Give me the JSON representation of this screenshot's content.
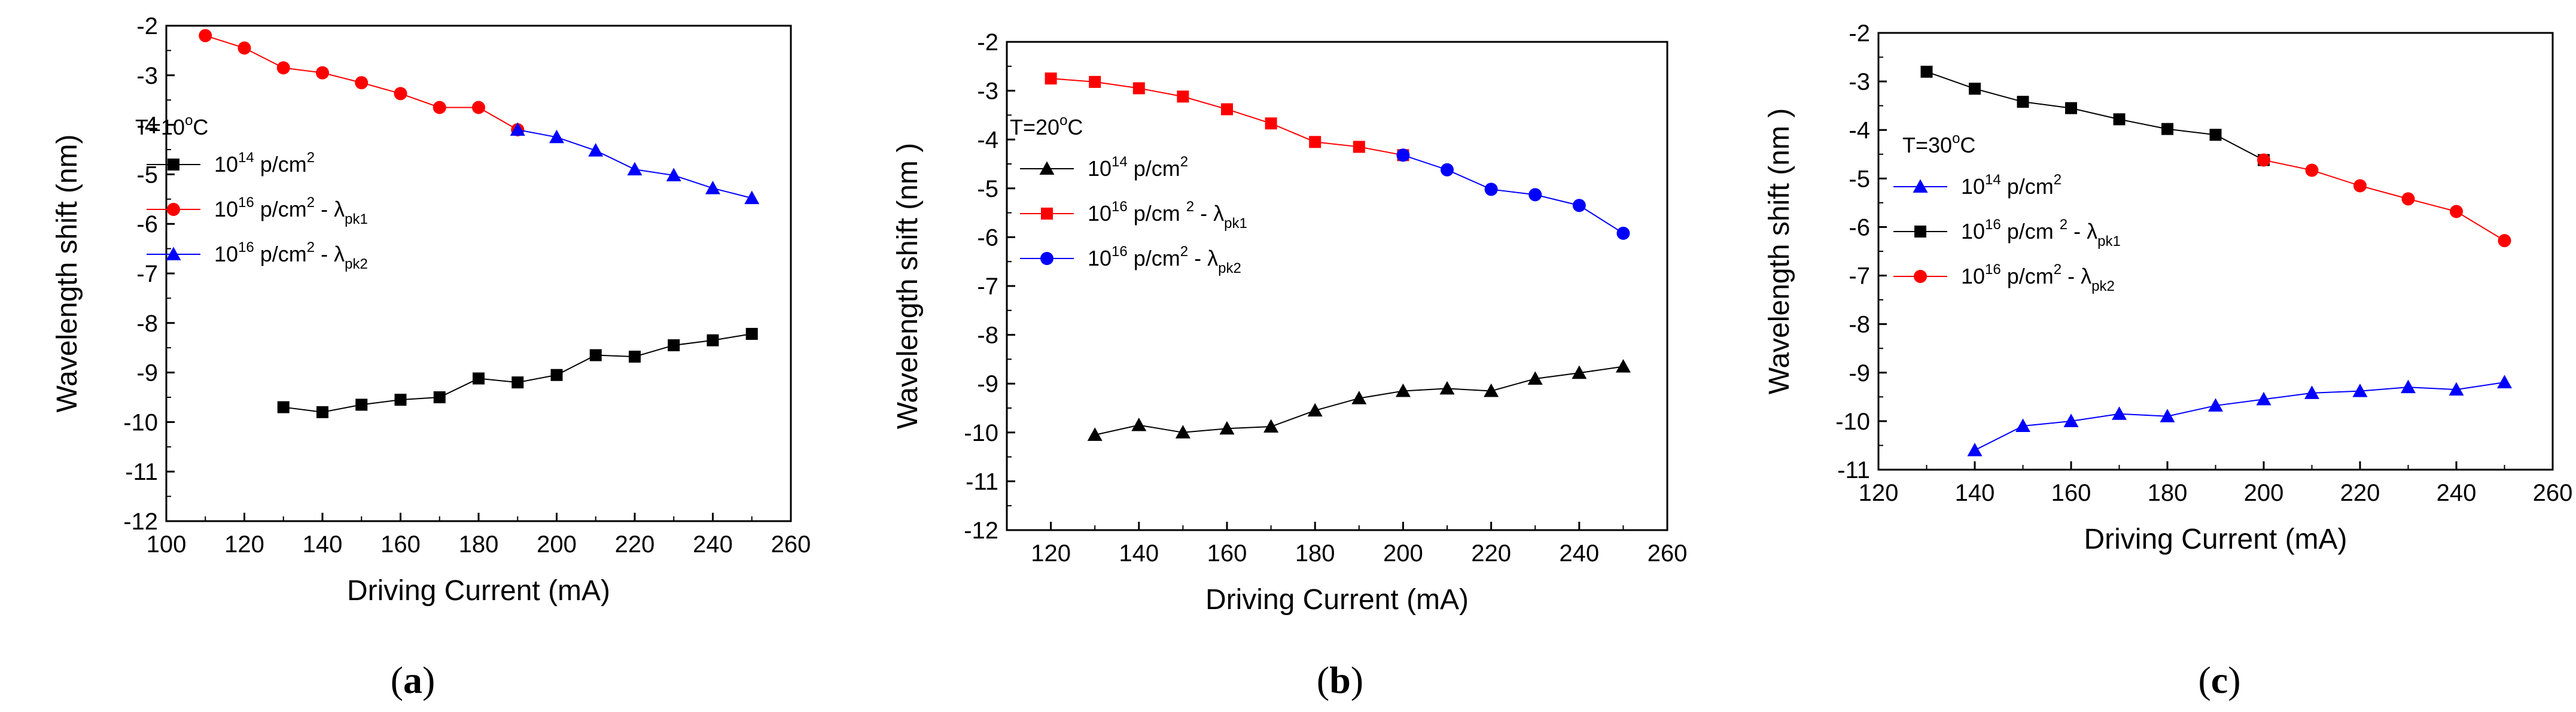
{
  "chart_data": [
    {
      "type": "line",
      "panel": "(a)",
      "title": "",
      "xlabel": "Driving Current (mA)",
      "ylabel": "Wavelength shift (nm)",
      "xlim": [
        100,
        260
      ],
      "ylim": [
        -12,
        -2
      ],
      "xticks": [
        100,
        120,
        140,
        160,
        180,
        200,
        220,
        240,
        260
      ],
      "yticks": [
        -2,
        -3,
        -4,
        -5,
        -6,
        -7,
        -8,
        -9,
        -10,
        -11,
        -12
      ],
      "annotation": "T=10",
      "annotation_unit": "C",
      "series": [
        {
          "name": "10^14 p/cm^2",
          "color": "#000000",
          "marker": "square",
          "x": [
            130,
            140,
            150,
            160,
            170,
            180,
            190,
            200,
            210,
            220,
            230,
            240,
            250
          ],
          "y": [
            -9.7,
            -9.8,
            -9.65,
            -9.55,
            -9.5,
            -9.12,
            -9.2,
            -9.05,
            -8.65,
            -8.68,
            -8.45,
            -8.35,
            -8.22
          ]
        },
        {
          "name": "10^16 p/cm^2 - λpk1",
          "color": "#ff0000",
          "marker": "circle",
          "x": [
            110,
            120,
            130,
            140,
            150,
            160,
            170,
            180,
            190
          ],
          "y": [
            -2.2,
            -2.45,
            -2.85,
            -2.95,
            -3.15,
            -3.37,
            -3.65,
            -3.65,
            -4.1
          ]
        },
        {
          "name": "10^16 p/cm^2 - λpk2",
          "color": "#0000ff",
          "marker": "triangle",
          "x": [
            190,
            200,
            210,
            220,
            230,
            240,
            250
          ],
          "y": [
            -4.1,
            -4.25,
            -4.52,
            -4.9,
            -5.02,
            -5.28,
            -5.48
          ]
        }
      ]
    },
    {
      "type": "line",
      "panel": "(b)",
      "title": "",
      "xlabel": "Driving Current (mA)",
      "ylabel": "Wavelength shift (nm )",
      "xlim": [
        110,
        260
      ],
      "ylim": [
        -12,
        -2
      ],
      "xticks": [
        120,
        140,
        160,
        180,
        200,
        220,
        240,
        260
      ],
      "yticks": [
        -2,
        -3,
        -4,
        -5,
        -6,
        -7,
        -8,
        -9,
        -10,
        -11,
        -12
      ],
      "annotation": "T=20",
      "annotation_unit": "C",
      "series": [
        {
          "name": "10^14 p/cm^2",
          "color": "#000000",
          "marker": "triangle",
          "x": [
            130,
            140,
            150,
            160,
            170,
            180,
            190,
            200,
            210,
            220,
            230,
            240,
            250
          ],
          "y": [
            -10.05,
            -9.85,
            -10.0,
            -9.92,
            -9.88,
            -9.55,
            -9.3,
            -9.15,
            -9.1,
            -9.15,
            -8.9,
            -8.78,
            -8.65
          ]
        },
        {
          "name": "10^16 p/cm^2 - λpk1",
          "color": "#ff0000",
          "marker": "square",
          "x": [
            120,
            130,
            140,
            150,
            160,
            170,
            180,
            190,
            200
          ],
          "y": [
            -2.75,
            -2.82,
            -2.95,
            -3.12,
            -3.38,
            -3.67,
            -4.05,
            -4.15,
            -4.32
          ]
        },
        {
          "name": "10^16 p/cm^2 - λpk2",
          "color": "#0000ff",
          "marker": "circle",
          "x": [
            200,
            210,
            220,
            230,
            240,
            250
          ],
          "y": [
            -4.32,
            -4.62,
            -5.02,
            -5.13,
            -5.35,
            -5.92
          ]
        }
      ]
    },
    {
      "type": "line",
      "panel": "(c)",
      "title": "",
      "xlabel": "Driving Current (mA)",
      "ylabel": "Wavelength shift (nm )",
      "xlim": [
        120,
        260
      ],
      "ylim": [
        -11,
        -2
      ],
      "xticks": [
        120,
        140,
        160,
        180,
        200,
        220,
        240,
        260
      ],
      "yticks": [
        -2,
        -3,
        -4,
        -5,
        -6,
        -7,
        -8,
        -9,
        -10,
        -11
      ],
      "annotation": "T=30",
      "annotation_unit": "C",
      "series": [
        {
          "name": "10^14 p/cm^2",
          "color": "#0000ff",
          "marker": "triangle",
          "x": [
            140,
            150,
            160,
            170,
            180,
            190,
            200,
            210,
            220,
            230,
            240,
            250
          ],
          "y": [
            -10.6,
            -10.1,
            -10.0,
            -9.85,
            -9.9,
            -9.68,
            -9.55,
            -9.42,
            -9.38,
            -9.3,
            -9.35,
            -9.2
          ]
        },
        {
          "name": "10^16 p/cm^2 - λpk1",
          "color": "#000000",
          "marker": "square",
          "x": [
            130,
            140,
            150,
            160,
            170,
            180,
            190,
            200
          ],
          "y": [
            -2.8,
            -3.15,
            -3.42,
            -3.55,
            -3.78,
            -3.98,
            -4.1,
            -4.62
          ]
        },
        {
          "name": "10^16 p/cm^2 - λpk2",
          "color": "#ff0000",
          "marker": "circle",
          "x": [
            200,
            210,
            220,
            230,
            240,
            250
          ],
          "y": [
            -4.62,
            -4.83,
            -5.15,
            -5.42,
            -5.68,
            -6.28
          ]
        }
      ]
    }
  ],
  "legends": [
    [
      {
        "marker_color": "#000000",
        "marker": "square",
        "base": "10",
        "exp": "14",
        "unit": " p/cm",
        "unit_exp": "2",
        "suffix": "",
        "sub": ""
      },
      {
        "marker_color": "#ff0000",
        "marker": "circle",
        "base": "10",
        "exp": "16",
        "unit": " p/cm",
        "unit_exp": "2",
        "suffix": " - λ",
        "sub": "pk1"
      },
      {
        "marker_color": "#0000ff",
        "marker": "triangle",
        "base": "10",
        "exp": "16",
        "unit": " p/cm",
        "unit_exp": "2",
        "suffix": " - λ",
        "sub": "pk2"
      }
    ],
    [
      {
        "marker_color": "#000000",
        "marker": "triangle",
        "base": "10",
        "exp": "14",
        "unit": " p/cm",
        "unit_exp": "2",
        "suffix": "",
        "sub": ""
      },
      {
        "marker_color": "#ff0000",
        "marker": "square",
        "base": "10",
        "exp": "16",
        "unit": " p/cm ",
        "unit_exp": "2",
        "suffix": " - λ",
        "sub": "pk1"
      },
      {
        "marker_color": "#0000ff",
        "marker": "circle",
        "base": "10",
        "exp": "16",
        "unit": " p/cm",
        "unit_exp": "2",
        "suffix": " - λ",
        "sub": "pk2"
      }
    ],
    [
      {
        "marker_color": "#0000ff",
        "marker": "triangle",
        "base": "10",
        "exp": "14",
        "unit": " p/cm",
        "unit_exp": "2",
        "suffix": "",
        "sub": ""
      },
      {
        "marker_color": "#000000",
        "marker": "square",
        "base": "10",
        "exp": "16",
        "unit": " p/cm ",
        "unit_exp": "2",
        "suffix": " - λ",
        "sub": "pk1"
      },
      {
        "marker_color": "#ff0000",
        "marker": "circle",
        "base": "10",
        "exp": "16",
        "unit": " p/cm",
        "unit_exp": "2",
        "suffix": " - λ",
        "sub": "pk2"
      }
    ]
  ],
  "captions": [
    "a",
    "b",
    "c"
  ],
  "degree_symbol": "o"
}
